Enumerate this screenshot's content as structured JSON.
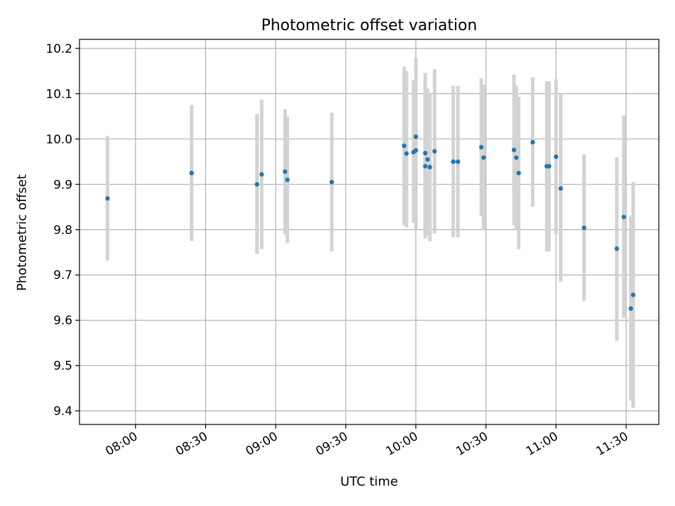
{
  "chart_data": {
    "type": "scatter",
    "title": "Photometric offset variation",
    "xlabel": "UTC time",
    "ylabel": "Photometric offset",
    "xlim": [
      "07:36",
      "11:44"
    ],
    "ylim": [
      9.37,
      10.22
    ],
    "x_ticks": [
      "08:00",
      "08:30",
      "09:00",
      "09:30",
      "10:00",
      "10:30",
      "11:00",
      "11:30"
    ],
    "y_ticks": [
      "9.4",
      "9.5",
      "9.6",
      "9.7",
      "9.8",
      "9.9",
      "10.0",
      "10.1",
      "10.2"
    ],
    "grid": true,
    "marker_color": "#1f77b4",
    "errorbar_color": "#d3d3d3",
    "series": [
      {
        "points": [
          {
            "x": "07:48",
            "y": 9.869,
            "ymin": 9.732,
            "ymax": 10.007
          },
          {
            "x": "08:24",
            "y": 9.925,
            "ymin": 9.775,
            "ymax": 10.075
          },
          {
            "x": "08:52",
            "y": 9.9,
            "ymin": 9.747,
            "ymax": 10.055
          },
          {
            "x": "08:54",
            "y": 9.922,
            "ymin": 9.757,
            "ymax": 10.087
          },
          {
            "x": "09:04",
            "y": 9.928,
            "ymin": 9.79,
            "ymax": 10.066
          },
          {
            "x": "09:05",
            "y": 9.91,
            "ymin": 9.771,
            "ymax": 10.049
          },
          {
            "x": "09:24",
            "y": 9.905,
            "ymin": 9.752,
            "ymax": 10.058
          },
          {
            "x": "09:55",
            "y": 9.985,
            "ymin": 9.81,
            "ymax": 10.16
          },
          {
            "x": "09:56",
            "y": 9.968,
            "ymin": 9.805,
            "ymax": 10.15
          },
          {
            "x": "09:59",
            "y": 9.971,
            "ymin": 9.815,
            "ymax": 10.13
          },
          {
            "x": "10:00",
            "y": 9.975,
            "ymin": 9.8,
            "ymax": 10.15
          },
          {
            "x": "10:00",
            "y": 10.005,
            "ymin": 9.83,
            "ymax": 10.18
          },
          {
            "x": "10:04",
            "y": 9.969,
            "ymin": 9.793,
            "ymax": 10.146
          },
          {
            "x": "10:04",
            "y": 9.94,
            "ymin": 9.78,
            "ymax": 10.1
          },
          {
            "x": "10:05",
            "y": 9.955,
            "ymin": 9.788,
            "ymax": 10.112
          },
          {
            "x": "10:06",
            "y": 9.938,
            "ymin": 9.775,
            "ymax": 10.1
          },
          {
            "x": "10:08",
            "y": 9.973,
            "ymin": 9.792,
            "ymax": 10.154
          },
          {
            "x": "10:16",
            "y": 9.95,
            "ymin": 9.783,
            "ymax": 10.117
          },
          {
            "x": "10:18",
            "y": 9.95,
            "ymin": 9.783,
            "ymax": 10.117
          },
          {
            "x": "10:28",
            "y": 9.982,
            "ymin": 9.83,
            "ymax": 10.134
          },
          {
            "x": "10:29",
            "y": 9.959,
            "ymin": 9.8,
            "ymax": 10.12
          },
          {
            "x": "10:42",
            "y": 9.976,
            "ymin": 9.81,
            "ymax": 10.142
          },
          {
            "x": "10:43",
            "y": 9.959,
            "ymin": 9.8,
            "ymax": 10.118
          },
          {
            "x": "10:44",
            "y": 9.925,
            "ymin": 9.757,
            "ymax": 10.093
          },
          {
            "x": "10:50",
            "y": 9.993,
            "ymin": 9.85,
            "ymax": 10.136
          },
          {
            "x": "10:56",
            "y": 9.94,
            "ymin": 9.752,
            "ymax": 10.128
          },
          {
            "x": "10:57",
            "y": 9.94,
            "ymin": 9.752,
            "ymax": 10.128
          },
          {
            "x": "11:00",
            "y": 9.961,
            "ymin": 9.79,
            "ymax": 10.132
          },
          {
            "x": "11:02",
            "y": 9.891,
            "ymin": 9.685,
            "ymax": 10.098
          },
          {
            "x": "11:12",
            "y": 9.804,
            "ymin": 9.643,
            "ymax": 9.966
          },
          {
            "x": "11:26",
            "y": 9.758,
            "ymin": 9.555,
            "ymax": 9.96
          },
          {
            "x": "11:29",
            "y": 9.828,
            "ymin": 9.605,
            "ymax": 10.052
          },
          {
            "x": "11:32",
            "y": 9.626,
            "ymin": 9.423,
            "ymax": 9.83
          },
          {
            "x": "11:33",
            "y": 9.656,
            "ymin": 9.407,
            "ymax": 9.905
          }
        ]
      }
    ]
  }
}
